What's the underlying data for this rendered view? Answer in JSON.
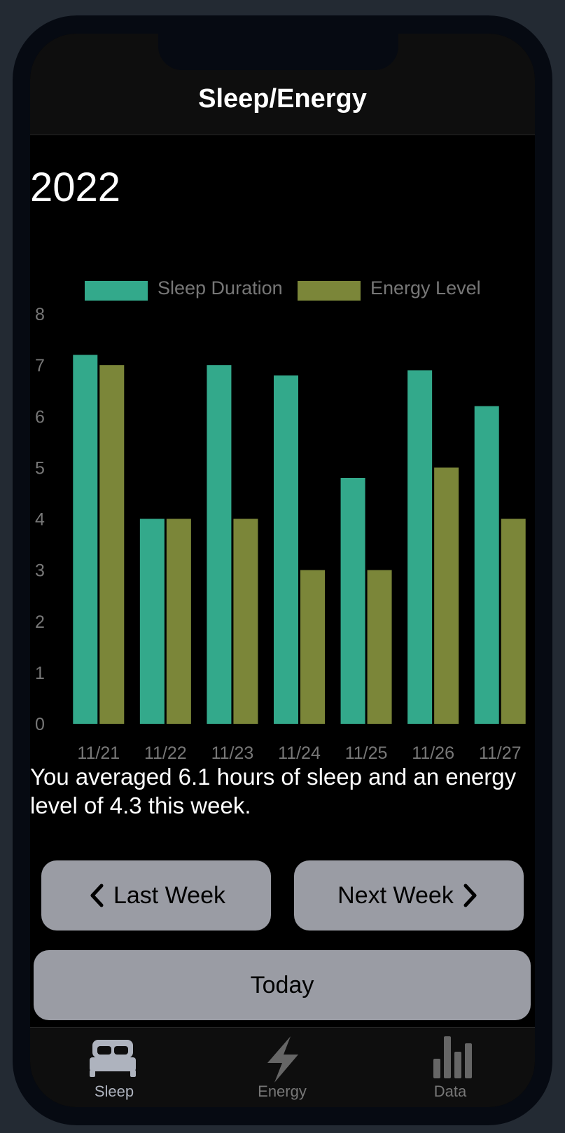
{
  "header": {
    "title": "Sleep/Energy"
  },
  "year": "2022",
  "summary": "You averaged 6.1 hours of sleep and an energy level of 4.3 this week.",
  "buttons": {
    "last_week": "Last Week",
    "next_week": "Next Week",
    "today": "Today"
  },
  "tabs": [
    {
      "label": "Sleep",
      "icon": "bed-icon",
      "active": true
    },
    {
      "label": "Energy",
      "icon": "lightning-icon",
      "active": false
    },
    {
      "label": "Data",
      "icon": "bar-chart-icon",
      "active": false
    }
  ],
  "colors": {
    "sleep": "#33a98b",
    "energy": "#7b8639",
    "button": "#9a9ca4"
  },
  "chart_data": {
    "type": "bar",
    "categories": [
      "11/21",
      "11/22",
      "11/23",
      "11/24",
      "11/25",
      "11/26",
      "11/27"
    ],
    "series": [
      {
        "name": "Sleep Duration",
        "values": [
          7.2,
          4,
          7,
          6.8,
          4.8,
          6.9,
          6.2
        ]
      },
      {
        "name": "Energy Level",
        "values": [
          7,
          4,
          4,
          3,
          3,
          5,
          4
        ]
      }
    ],
    "y_ticks": [
      "0",
      "1",
      "2",
      "3",
      "4",
      "5",
      "6",
      "7",
      "8"
    ],
    "ylim": [
      0,
      8
    ],
    "grid": false,
    "legend": "top"
  }
}
